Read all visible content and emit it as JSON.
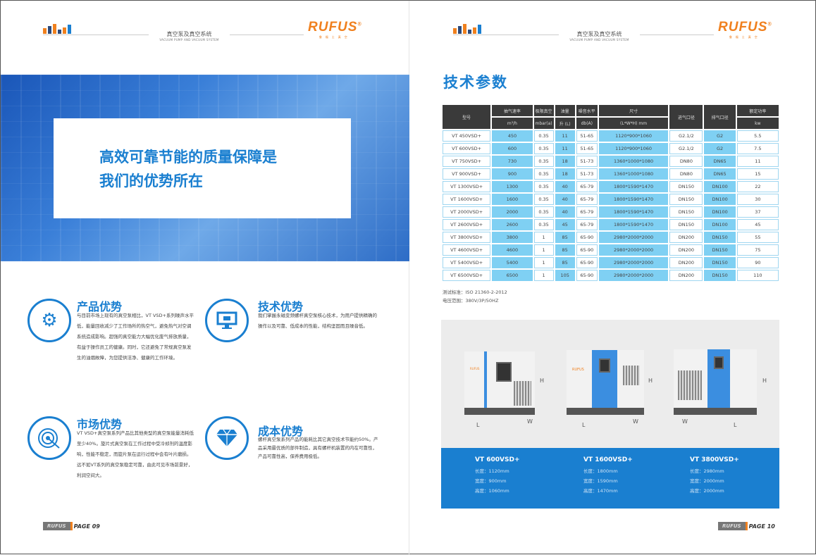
{
  "header": {
    "title": "真空泵及真空系统",
    "subtitle": "VACUUM PUMP AND VACUUM SYSTEM",
    "logo": "RUFUS",
    "logo_mark": "®",
    "logo_sub": "鲁福士真空"
  },
  "left": {
    "hero_text": [
      "高效可靠节能的质量保障是",
      "我们的优势所在"
    ],
    "features": [
      {
        "icon": "gear-icon",
        "title": "产品优势",
        "text": "与目前市场上现有的真空泵相比，VT VSD+系列噪声水平低，能量回收减少了工作场所的热空气，避免热气对空调系统造成影响。超强的真空能力大幅优化废气排放质量，有益于操作员工的健康。同时，它还避免了常规真空泵发生的油烟故障，为您提供洁净、健康的工作环境。"
      },
      {
        "icon": "monitor-icon",
        "title": "技术优势",
        "text": "我们掌握永磁变频螺杆真空泵核心技术，为用户提供精确的操作以及可靠、低成本的性能，结构坚固而且噪音低。"
      },
      {
        "icon": "target-icon",
        "title": "市场优势",
        "text": "VT VSD+真空泵系列产品比其他类型的真空泵能量消耗低至少40%。旋片式真空泵在工作过程中受冷却剂的温度影响，性能不稳定，而旋片泵在运行过程中会有叶片磨损。远不如VT系列的真空泵稳定可靠，由此可见市场前景好，利润空间大。"
      },
      {
        "icon": "diamond-icon",
        "title": "成本优势",
        "text": "螺杆真空泵系列产品的能耗比其它真空技术节能约50%。产品采用最优质的部件制造，具有螺杆机装置的内在可靠性，产品可靠性高，保养费用极低。"
      }
    ],
    "page_label": "RUFUS",
    "page_num": "PAGE 09"
  },
  "right": {
    "title": "技术参数",
    "table": {
      "headers": [
        "型号",
        "抽气速率",
        "极限真空",
        "油量",
        "噪音水平",
        "尺寸",
        "进气口径",
        "排气口径",
        "额定功率"
      ],
      "units": [
        "m³/h",
        "mbar(a)",
        "升 (L)",
        "db(A)",
        "(L*W*H) mm",
        "kw"
      ],
      "rows": [
        [
          "VT 450VSD+",
          "450",
          "0.35",
          "11",
          "51-65",
          "1120*900*1060",
          "G2.1/2",
          "G2",
          "5.5"
        ],
        [
          "VT 600VSD+",
          "600",
          "0.35",
          "11",
          "51-65",
          "1120*900*1060",
          "G2.1/2",
          "G2",
          "7.5"
        ],
        [
          "VT 750VSD+",
          "730",
          "0.35",
          "18",
          "51-73",
          "1360*1000*1080",
          "DN80",
          "DN65",
          "11"
        ],
        [
          "VT 900VSD+",
          "900",
          "0.35",
          "18",
          "51-73",
          "1360*1000*1080",
          "DN80",
          "DN65",
          "15"
        ],
        [
          "VT 1300VSD+",
          "1300",
          "0.35",
          "40",
          "65-79",
          "1800*1590*1470",
          "DN150",
          "DN100",
          "22"
        ],
        [
          "VT 1600VSD+",
          "1600",
          "0.35",
          "40",
          "65-79",
          "1800*1590*1470",
          "DN150",
          "DN100",
          "30"
        ],
        [
          "VT 2000VSD+",
          "2000",
          "0.35",
          "40",
          "65-79",
          "1800*1590*1470",
          "DN150",
          "DN100",
          "37"
        ],
        [
          "VT 2600VSD+",
          "2600",
          "0.35",
          "45",
          "65-79",
          "1800*1590*1470",
          "DN150",
          "DN100",
          "45"
        ],
        [
          "VT 3800VSD+",
          "3800",
          "1",
          "85",
          "65-90",
          "2980*2000*2000",
          "DN200",
          "DN150",
          "55"
        ],
        [
          "VT 4600VSD+",
          "4600",
          "1",
          "85",
          "65-90",
          "2980*2000*2000",
          "DN200",
          "DN150",
          "75"
        ],
        [
          "VT 5400VSD+",
          "5400",
          "1",
          "85",
          "65-90",
          "2980*2000*2000",
          "DN200",
          "DN150",
          "90"
        ],
        [
          "VT 6500VSD+",
          "6500",
          "1",
          "105",
          "65-90",
          "2980*2000*2000",
          "DN200",
          "DN150",
          "110"
        ]
      ]
    },
    "notes": [
      "测试标准：ISO 21360-2-2012",
      "电压范围：380V/3P/50HZ"
    ],
    "dim_labels": {
      "l": "L",
      "w": "W",
      "h": "H"
    },
    "machine_brand": "RUFUS",
    "products": [
      {
        "name": "VT 600VSD+",
        "lines": [
          "长度：1120mm",
          "宽度：900mm",
          "高度：1060mm"
        ]
      },
      {
        "name": "VT 1600VSD+",
        "lines": [
          "长度：1800mm",
          "宽度：1590mm",
          "高度：1470mm"
        ]
      },
      {
        "name": "VT 3800VSD+",
        "lines": [
          "长度：2980mm",
          "宽度：2000mm",
          "高度：2000mm"
        ]
      }
    ],
    "page_label": "RUFUS",
    "page_num": "PAGE 10"
  },
  "colors": {
    "accent": "#1a7fd0",
    "brand": "#f0801e",
    "cell_blue": "#7fd0f3",
    "header_dark": "#3a3a3a"
  }
}
